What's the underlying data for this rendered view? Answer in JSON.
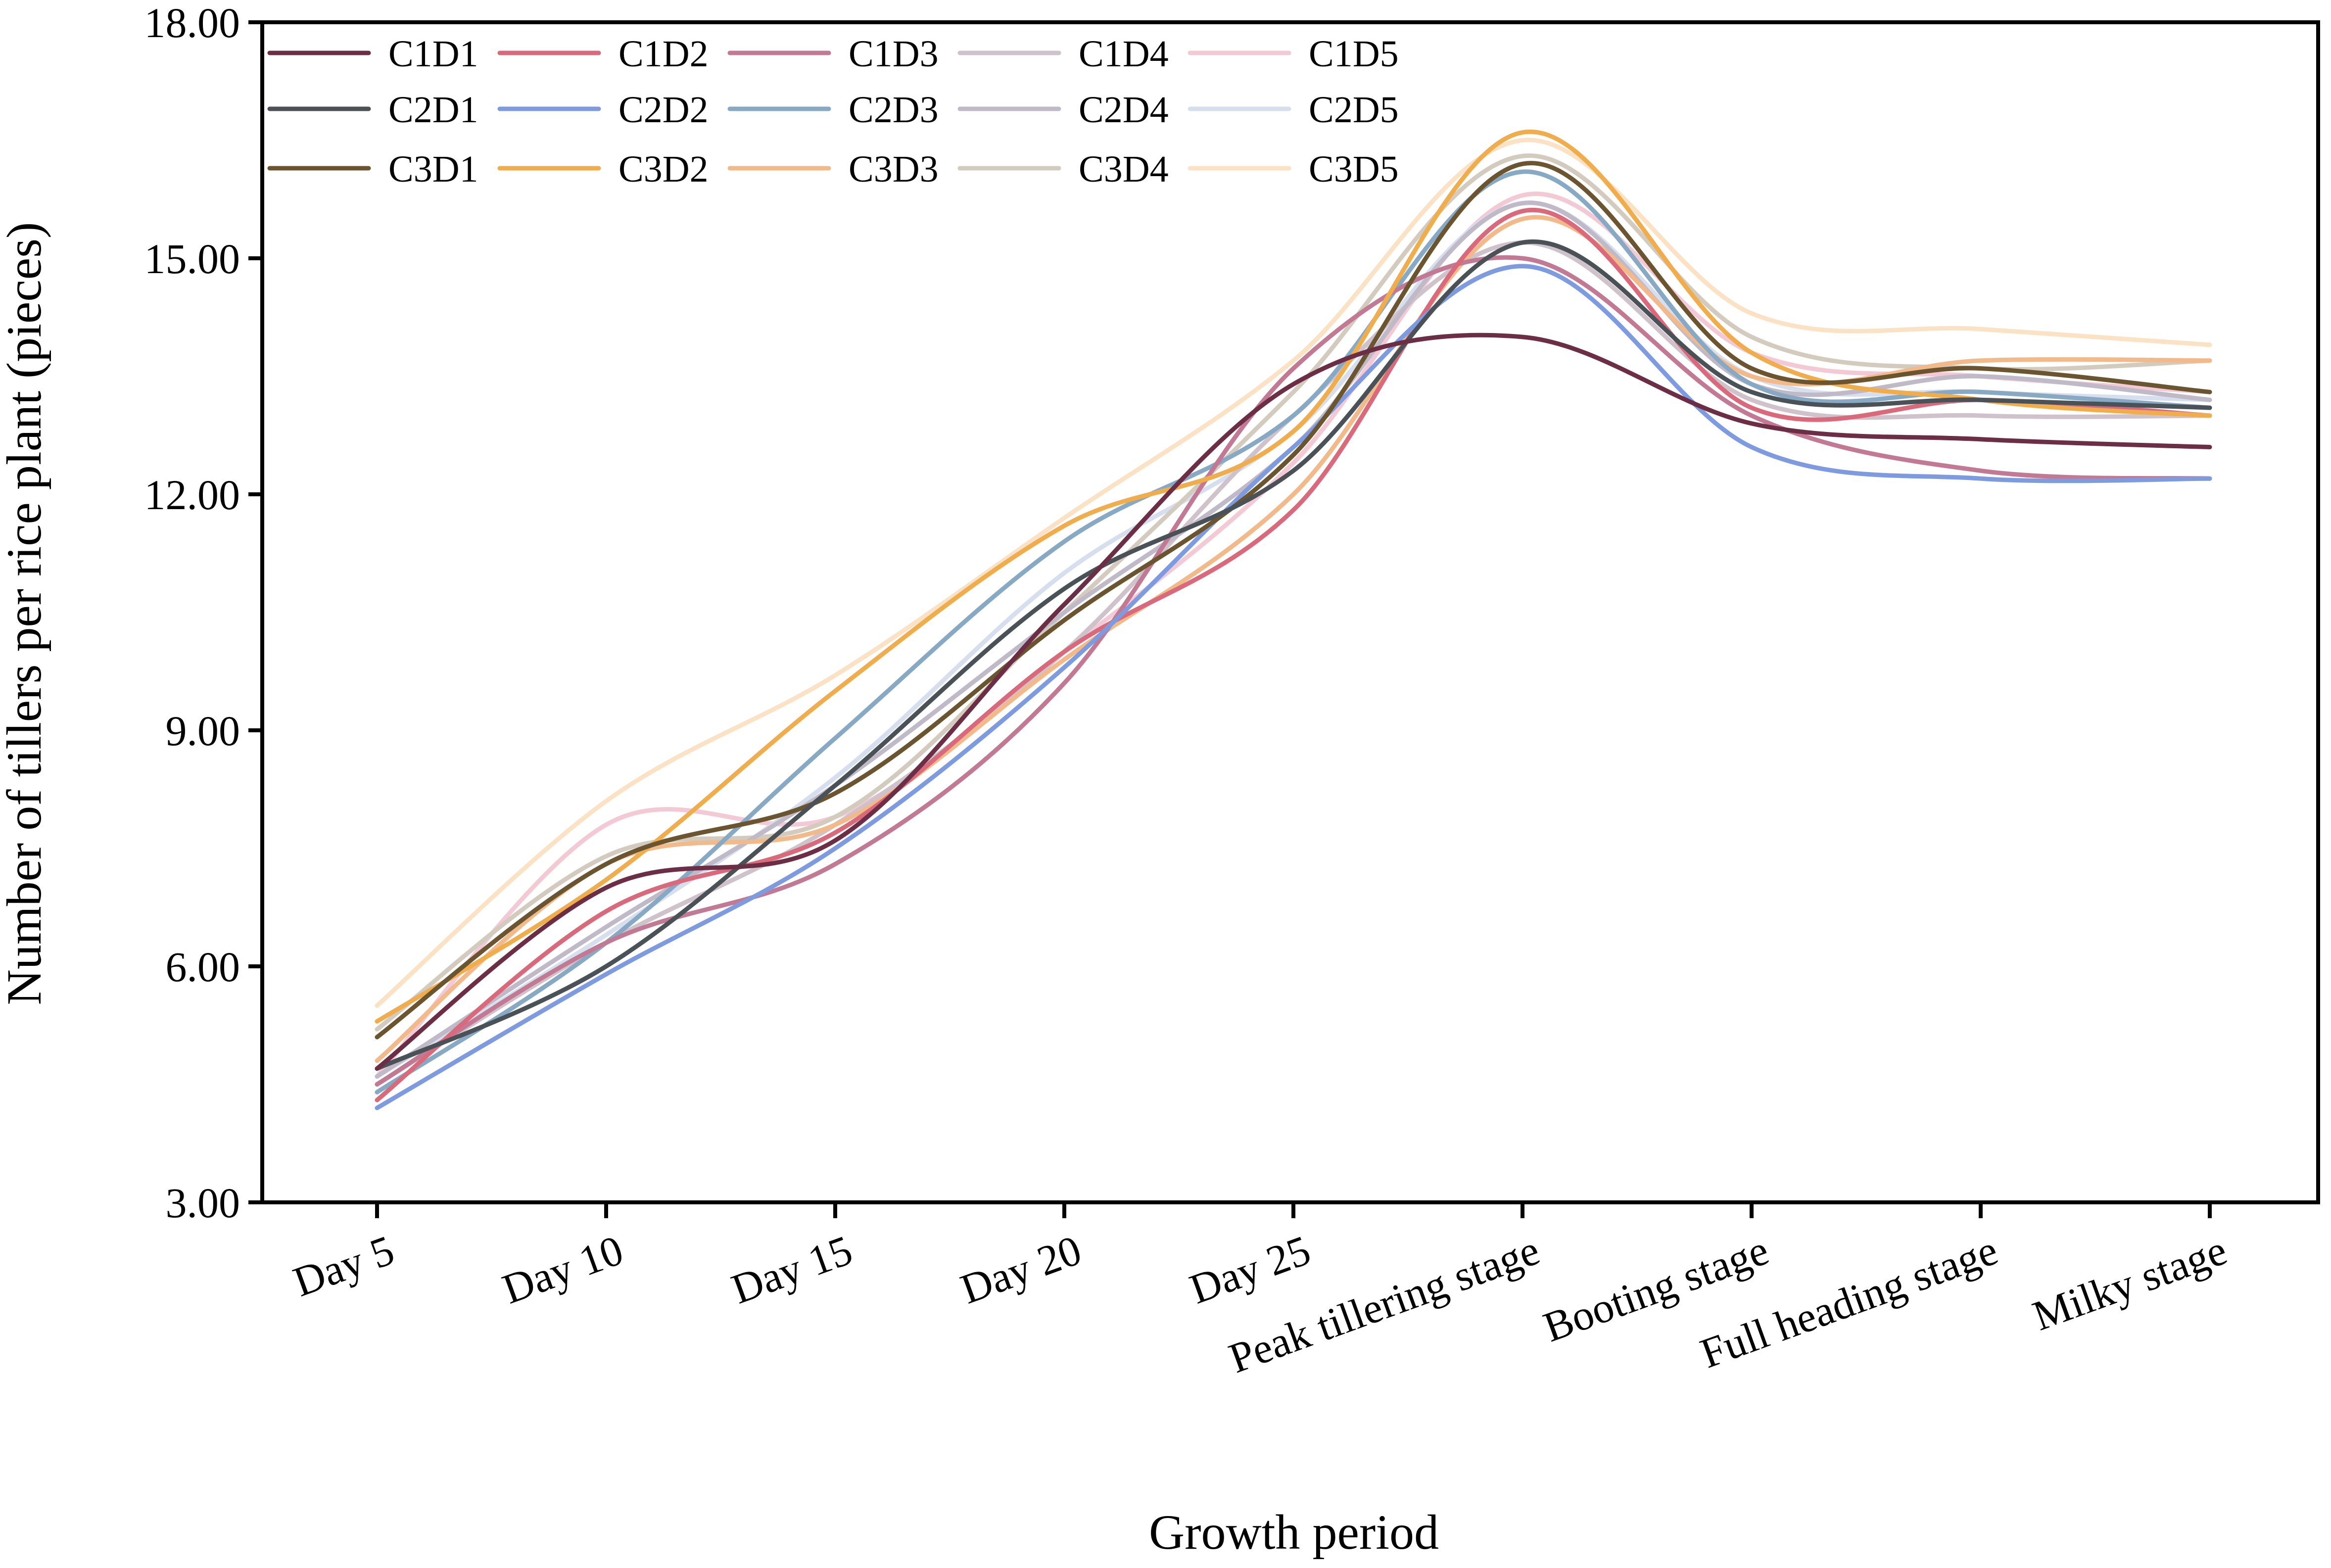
{
  "chart_data": {
    "type": "line",
    "xlabel": "Growth period",
    "ylabel": "Number of tillers per rice plant (pieces)",
    "ylim": [
      3,
      18
    ],
    "yticks": [
      "3.00",
      "6.00",
      "9.00",
      "12.00",
      "15.00",
      "18.00"
    ],
    "ytick_values": [
      3,
      6,
      9,
      12,
      15,
      18
    ],
    "categories": [
      "Day 5",
      "Day 10",
      "Day 15",
      "Day 20",
      "Day 25",
      "Peak tillering stage",
      "Booting stage",
      "Full heading stage",
      "Milky stage"
    ],
    "grid": false,
    "legend": "top-left",
    "series": [
      {
        "name": "C1D1",
        "color": "#6B2E45",
        "values": [
          4.7,
          7.0,
          7.6,
          10.6,
          13.4,
          14.0,
          12.9,
          12.7,
          12.6
        ]
      },
      {
        "name": "C1D2",
        "color": "#D96A7C",
        "values": [
          4.3,
          6.7,
          7.7,
          10.0,
          11.8,
          15.6,
          13.1,
          13.2,
          13.0
        ]
      },
      {
        "name": "C1D3",
        "color": "#C27A94",
        "values": [
          4.5,
          6.3,
          7.3,
          9.6,
          13.6,
          15.0,
          13.0,
          12.3,
          12.2
        ]
      },
      {
        "name": "C1D4",
        "color": "#CFC2CA",
        "values": [
          4.5,
          6.3,
          7.8,
          10.0,
          13.0,
          15.2,
          13.2,
          13.0,
          13.0
        ]
      },
      {
        "name": "C1D5",
        "color": "#F3C9D6",
        "values": [
          4.6,
          7.8,
          7.9,
          10.0,
          12.4,
          15.8,
          13.8,
          13.5,
          13.3
        ]
      },
      {
        "name": "C2D1",
        "color": "#4A5258",
        "values": [
          4.7,
          6.0,
          8.3,
          10.8,
          12.3,
          15.2,
          13.3,
          13.2,
          13.1
        ]
      },
      {
        "name": "C2D2",
        "color": "#7E9BE0",
        "values": [
          4.2,
          5.9,
          7.5,
          9.8,
          12.6,
          14.9,
          12.6,
          12.2,
          12.2
        ]
      },
      {
        "name": "C2D3",
        "color": "#88A9C4",
        "values": [
          4.4,
          6.3,
          8.9,
          11.4,
          13.0,
          16.1,
          13.4,
          13.3,
          13.1
        ]
      },
      {
        "name": "C2D4",
        "color": "#C0BAC8",
        "values": [
          4.6,
          6.5,
          8.3,
          10.5,
          12.6,
          15.7,
          13.4,
          13.5,
          13.2
        ]
      },
      {
        "name": "C2D5",
        "color": "#D7DFEF",
        "values": [
          4.6,
          6.4,
          8.4,
          11.0,
          12.8,
          15.7,
          13.5,
          13.3,
          13.2
        ]
      },
      {
        "name": "C3D1",
        "color": "#6B5530",
        "values": [
          5.1,
          7.3,
          8.2,
          10.4,
          12.5,
          16.2,
          13.6,
          13.6,
          13.3
        ]
      },
      {
        "name": "C3D2",
        "color": "#F0AD4E",
        "values": [
          5.3,
          7.1,
          9.5,
          11.6,
          12.8,
          16.6,
          13.8,
          13.2,
          13.0
        ]
      },
      {
        "name": "C3D3",
        "color": "#F2B98A",
        "values": [
          4.8,
          7.3,
          7.8,
          9.9,
          12.0,
          15.5,
          13.5,
          13.7,
          13.7
        ]
      },
      {
        "name": "C3D4",
        "color": "#D4CBBF",
        "values": [
          5.2,
          7.4,
          7.9,
          10.5,
          13.3,
          16.3,
          14.0,
          13.6,
          13.7
        ]
      },
      {
        "name": "C3D5",
        "color": "#FBE2C4",
        "values": [
          5.5,
          8.1,
          9.7,
          11.7,
          13.7,
          16.5,
          14.3,
          14.1,
          13.9
        ]
      }
    ]
  }
}
